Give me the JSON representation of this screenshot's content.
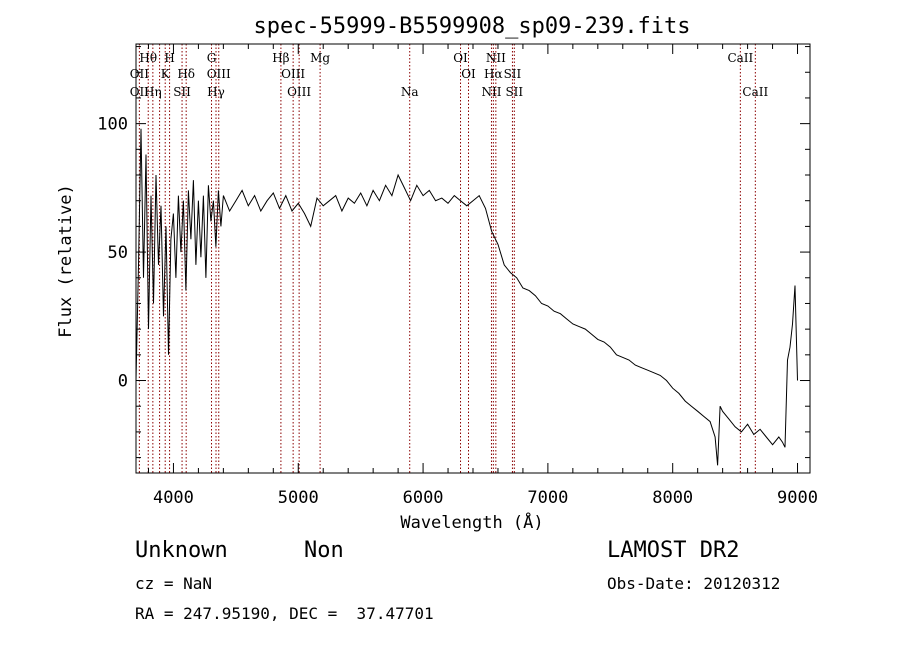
{
  "chart_data": {
    "type": "line",
    "title": "spec-55999-B5599908_sp09-239.fits",
    "xlabel": "Wavelength (Å)",
    "ylabel": "Flux (relative)",
    "xlim": [
      3700,
      9100
    ],
    "ylim": [
      -36,
      131
    ],
    "xticks": [
      4000,
      5000,
      6000,
      7000,
      8000,
      9000
    ],
    "yticks": [
      0,
      50,
      100
    ],
    "grid": false,
    "line_color": "#000000",
    "marker_color": "#8b0000",
    "series": [
      {
        "x": [
          3700,
          3720,
          3740,
          3760,
          3780,
          3800,
          3820,
          3840,
          3860,
          3880,
          3900,
          3920,
          3940,
          3960,
          3980,
          4000,
          4020,
          4040,
          4060,
          4080,
          4100,
          4120,
          4140,
          4160,
          4180,
          4200,
          4220,
          4240,
          4260,
          4280,
          4300,
          4320,
          4340,
          4360,
          4380,
          4400,
          4450,
          4500,
          4550,
          4600,
          4650,
          4700,
          4750,
          4800,
          4850,
          4900,
          4950,
          5000,
          5050,
          5100,
          5150,
          5200,
          5250,
          5300,
          5350,
          5400,
          5450,
          5500,
          5550,
          5600,
          5650,
          5700,
          5750,
          5800,
          5850,
          5900,
          5950,
          6000,
          6050,
          6100,
          6150,
          6200,
          6250,
          6300,
          6350,
          6400,
          6450,
          6500,
          6550,
          6600,
          6650,
          6700,
          6750,
          6800,
          6850,
          6900,
          6950,
          7000,
          7050,
          7100,
          7150,
          7200,
          7250,
          7300,
          7350,
          7400,
          7450,
          7500,
          7550,
          7600,
          7650,
          7700,
          7750,
          7800,
          7850,
          7900,
          7950,
          8000,
          8050,
          8100,
          8150,
          8200,
          8250,
          8300,
          8340,
          8360,
          8380,
          8400,
          8450,
          8500,
          8550,
          8600,
          8650,
          8700,
          8750,
          8800,
          8850,
          8880,
          8900,
          8920,
          8940,
          8960,
          8980,
          9000
        ],
        "y": [
          0,
          45,
          98,
          40,
          88,
          20,
          72,
          30,
          80,
          45,
          68,
          25,
          60,
          10,
          55,
          65,
          40,
          72,
          50,
          70,
          35,
          74,
          55,
          78,
          45,
          70,
          48,
          72,
          40,
          76,
          62,
          70,
          52,
          74,
          60,
          72,
          66,
          70,
          74,
          68,
          72,
          66,
          70,
          73,
          67,
          72,
          66,
          69,
          65,
          60,
          71,
          68,
          70,
          72,
          66,
          71,
          69,
          73,
          68,
          74,
          70,
          76,
          72,
          80,
          75,
          70,
          76,
          72,
          74,
          70,
          71,
          69,
          72,
          70,
          68,
          70,
          72,
          67,
          58,
          53,
          45,
          42,
          40,
          36,
          35,
          33,
          30,
          29,
          27,
          26,
          24,
          22,
          21,
          20,
          18,
          16,
          15,
          13,
          10,
          9,
          8,
          6,
          5,
          4,
          3,
          2,
          0,
          -3,
          -5,
          -8,
          -10,
          -12,
          -14,
          -16,
          -22,
          -33,
          -10,
          -12,
          -15,
          -18,
          -20,
          -17,
          -21,
          -19,
          -22,
          -25,
          -22,
          -24,
          -26,
          8,
          13,
          22,
          37,
          0
        ]
      }
    ],
    "line_labels": [
      {
        "name": "Hθ",
        "x": 3798,
        "row": 1
      },
      {
        "name": "OII",
        "x": 3727,
        "row": 2
      },
      {
        "name": "OII",
        "x": 3727,
        "row": 3
      },
      {
        "name": "Hη",
        "x": 3835,
        "row": 3
      },
      {
        "name": "H",
        "x": 3969,
        "row": 1
      },
      {
        "name": "K",
        "x": 3934,
        "row": 2
      },
      {
        "name": "Hδ",
        "x": 4102,
        "row": 2
      },
      {
        "name": "SII",
        "x": 4069,
        "row": 3
      },
      {
        "name": "G",
        "x": 4305,
        "row": 1
      },
      {
        "name": "OIII",
        "x": 4363,
        "row": 2
      },
      {
        "name": "Hγ",
        "x": 4341,
        "row": 3
      },
      {
        "name": "Hβ",
        "x": 4861,
        "row": 1
      },
      {
        "name": "OIII",
        "x": 4959,
        "row": 2
      },
      {
        "name": "OIII",
        "x": 5007,
        "row": 3
      },
      {
        "name": "Mg",
        "x": 5175,
        "row": 1
      },
      {
        "name": "Na",
        "x": 5893,
        "row": 3
      },
      {
        "name": "OI",
        "x": 6300,
        "row": 1
      },
      {
        "name": "OI",
        "x": 6364,
        "row": 2
      },
      {
        "name": "NII",
        "x": 6583,
        "row": 1
      },
      {
        "name": "Hα",
        "x": 6563,
        "row": 2
      },
      {
        "name": "SII",
        "x": 6716,
        "row": 2
      },
      {
        "name": "NII",
        "x": 6548,
        "row": 3
      },
      {
        "name": "SII",
        "x": 6731,
        "row": 3
      },
      {
        "name": "CaII",
        "x": 8542,
        "row": 1
      },
      {
        "name": "CaII",
        "x": 8662,
        "row": 3
      }
    ],
    "line_markers": [
      3727,
      3798,
      3835,
      3889,
      3934,
      3969,
      4069,
      4102,
      4305,
      4341,
      4363,
      4861,
      4959,
      5007,
      5175,
      5893,
      6300,
      6364,
      6548,
      6563,
      6583,
      6716,
      6731,
      8542,
      8662
    ]
  },
  "info": {
    "class": "Unknown",
    "subclass": "Non",
    "survey": "LAMOST DR2",
    "cz": "cz = NaN",
    "obs_date": "Obs-Date: 20120312",
    "coords": "RA = 247.95190, DEC =  37.47701"
  }
}
